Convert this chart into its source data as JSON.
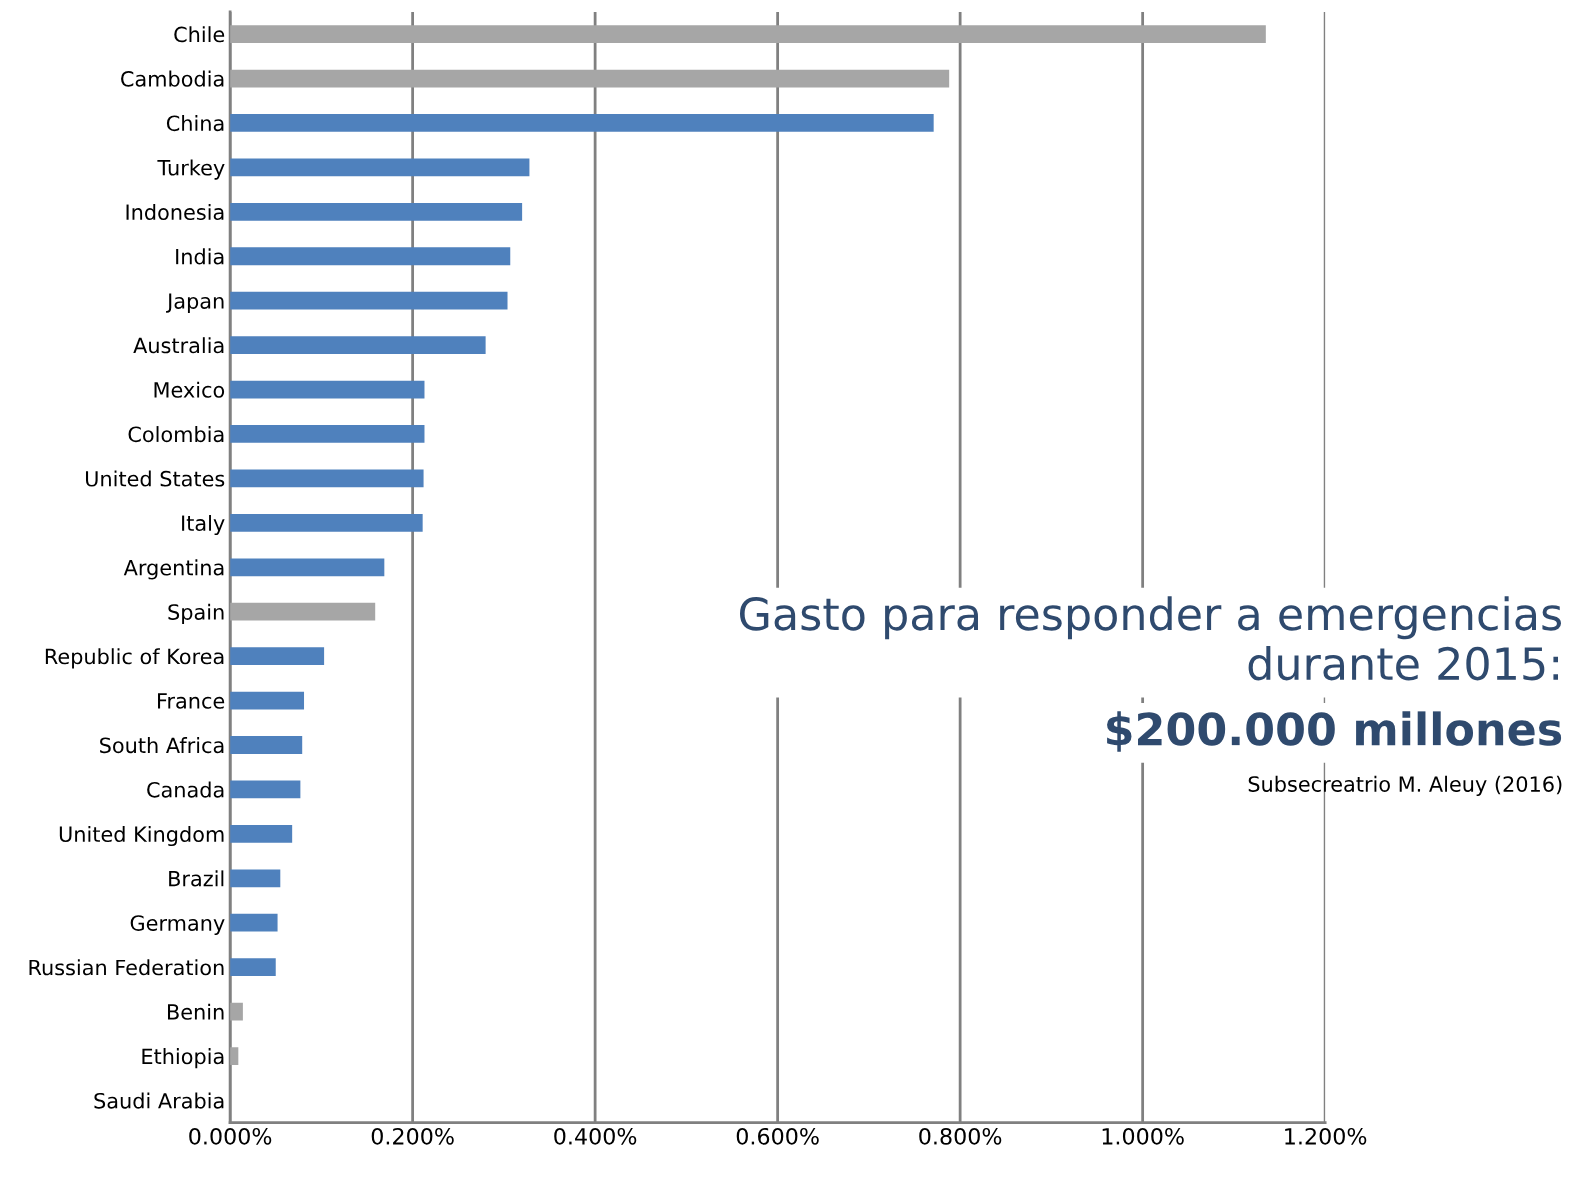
{
  "chart_data": {
    "type": "bar",
    "orientation": "horizontal",
    "title": "Gasto para responder a emergencias durante 2015:",
    "subtitle": "$200.000 millones",
    "annotations": [
      "Subsecreatrio M. Aleuy (2016)"
    ],
    "categories": [
      "Chile",
      "Cambodia",
      "China",
      "Turkey",
      "Indonesia",
      "India",
      "Japan",
      "Australia",
      "Mexico",
      "Colombia",
      "United States",
      "Italy",
      "Argentina",
      "Spain",
      "Republic of Korea",
      "France",
      "South Africa",
      "Canada",
      "United Kingdom",
      "Brazil",
      "Germany",
      "Russian Federation",
      "Benin",
      "Ethiopia",
      "Saudi Arabia"
    ],
    "values": [
      1.135,
      0.788,
      0.771,
      0.328,
      0.32,
      0.307,
      0.304,
      0.28,
      0.213,
      0.213,
      0.212,
      0.211,
      0.169,
      0.159,
      0.103,
      0.081,
      0.079,
      0.077,
      0.068,
      0.055,
      0.052,
      0.05,
      0.014,
      0.009,
      0
    ],
    "colors": [
      "#a6a6a6",
      "#a6a6a6",
      "#4f81bd",
      "#4f81bd",
      "#4f81bd",
      "#4f81bd",
      "#4f81bd",
      "#4f81bd",
      "#4f81bd",
      "#4f81bd",
      "#4f81bd",
      "#4f81bd",
      "#4f81bd",
      "#a6a6a6",
      "#4f81bd",
      "#4f81bd",
      "#4f81bd",
      "#4f81bd",
      "#4f81bd",
      "#4f81bd",
      "#4f81bd",
      "#4f81bd",
      "#a6a6a6",
      "#a6a6a6",
      "#a6a6a6"
    ],
    "xlim": [
      0,
      1.2
    ],
    "xticks": [
      {
        "value": 0,
        "label": "0.000%"
      },
      {
        "value": 0.2,
        "label": "0.200%"
      },
      {
        "value": 0.4,
        "label": "0.400%"
      },
      {
        "value": 0.6,
        "label": "0.600%"
      },
      {
        "value": 0.8,
        "label": "0.800%"
      },
      {
        "value": 1.0,
        "label": "1.000%"
      },
      {
        "value": 1.2,
        "label": "1.200%"
      }
    ],
    "grid": "x",
    "legend": false
  }
}
